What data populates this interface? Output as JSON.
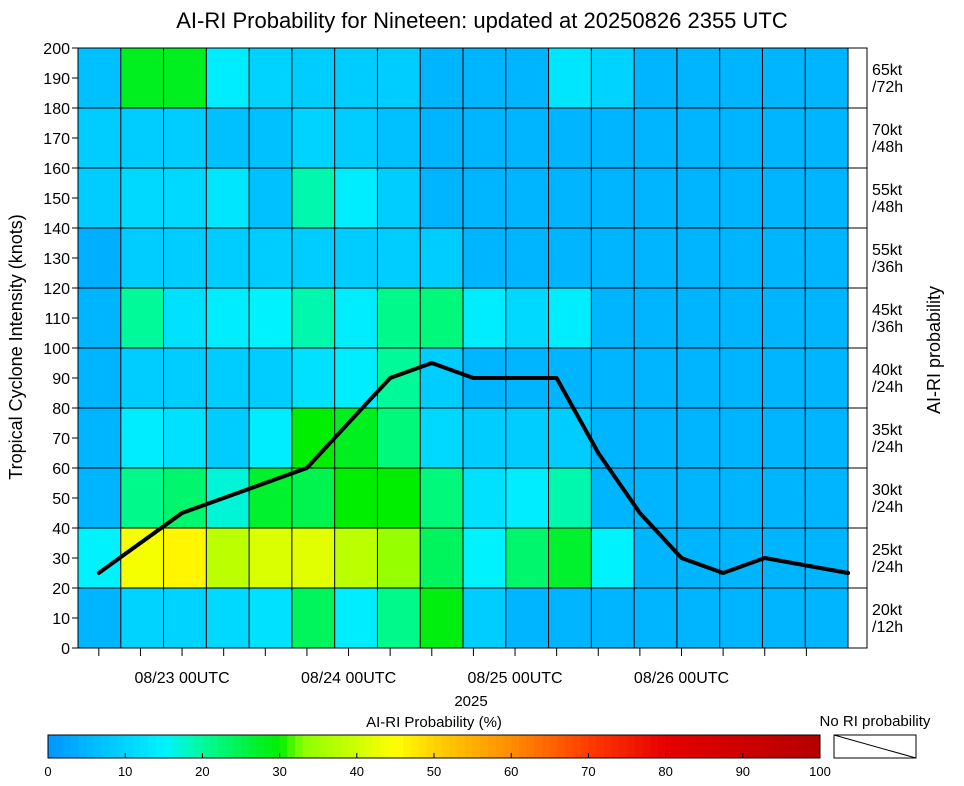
{
  "chart_data": {
    "type": "heatmap",
    "title": "AI-RI Probability for Nineteen: updated at 20250826 2355 UTC",
    "ylabel": "Tropical Cyclone Intensity (knots)",
    "xlabel": "2025",
    "right_axis_label": "AI-RI probability",
    "ylim": [
      0,
      200
    ],
    "yticks": [
      0,
      10,
      20,
      30,
      40,
      50,
      60,
      70,
      80,
      90,
      100,
      110,
      120,
      130,
      140,
      150,
      160,
      170,
      180,
      190,
      200
    ],
    "x_tick_labels": [
      "08/23 00UTC",
      "08/24 00UTC",
      "08/25 00UTC",
      "08/26 00UTC"
    ],
    "x_tick_label_times": [
      3,
      7,
      11,
      15
    ],
    "x_minor_ticks": [
      1,
      2,
      3,
      4,
      5,
      6,
      7,
      8,
      9,
      10,
      11,
      12,
      13,
      14,
      15,
      16,
      17,
      18
    ],
    "x_range": [
      0.5,
      19
    ],
    "time_unit": "6-hour steps from 08/22 06UTC",
    "y_bands": [
      {
        "label": "20kt\n/12h",
        "line1": "20kt",
        "line2": "/12h",
        "range": [
          0,
          20
        ]
      },
      {
        "label": "25kt\n/24h",
        "line1": "25kt",
        "line2": "/24h",
        "range": [
          20,
          40
        ]
      },
      {
        "label": "30kt\n/24h",
        "line1": "30kt",
        "line2": "/24h",
        "range": [
          40,
          60
        ]
      },
      {
        "label": "35kt\n/24h",
        "line1": "35kt",
        "line2": "/24h",
        "range": [
          60,
          80
        ]
      },
      {
        "label": "40kt\n/24h",
        "line1": "40kt",
        "line2": "/24h",
        "range": [
          80,
          100
        ]
      },
      {
        "label": "45kt\n/36h",
        "line1": "45kt",
        "line2": "/36h",
        "range": [
          100,
          120
        ]
      },
      {
        "label": "55kt\n/36h",
        "line1": "55kt",
        "line2": "/36h",
        "range": [
          120,
          140
        ]
      },
      {
        "label": "55kt\n/48h",
        "line1": "55kt",
        "line2": "/48h",
        "range": [
          140,
          160
        ]
      },
      {
        "label": "70kt\n/48h",
        "line1": "70kt",
        "line2": "/48h",
        "range": [
          160,
          180
        ]
      },
      {
        "label": "65kt\n/72h",
        "line1": "65kt",
        "line2": "/72h",
        "range": [
          180,
          200
        ]
      }
    ],
    "grid_columns": 18,
    "probabilities_by_band": [
      [
        5,
        10,
        10,
        11,
        12,
        24,
        14,
        21,
        29,
        9,
        5,
        5,
        5,
        5,
        5,
        5,
        5,
        5
      ],
      [
        15,
        44,
        46,
        38,
        41,
        42,
        38,
        34,
        24,
        15,
        23,
        27,
        15,
        5,
        5,
        5,
        5,
        5
      ],
      [
        5,
        21,
        23,
        17,
        27,
        25,
        30,
        30,
        22,
        12,
        14,
        19,
        5,
        5,
        5,
        5,
        5,
        5
      ],
      [
        5,
        14,
        12,
        9,
        14,
        30,
        28,
        22,
        11,
        9,
        9,
        9,
        5,
        5,
        5,
        5,
        5,
        5
      ],
      [
        5,
        9,
        9,
        9,
        9,
        12,
        14,
        20,
        9,
        5,
        5,
        5,
        5,
        5,
        5,
        5,
        5,
        5
      ],
      [
        5,
        20,
        12,
        14,
        15,
        19,
        14,
        21,
        22,
        14,
        11,
        14,
        5,
        5,
        5,
        5,
        5,
        5
      ],
      [
        4,
        9,
        9,
        9,
        9,
        9,
        9,
        9,
        9,
        5,
        5,
        5,
        5,
        5,
        5,
        5,
        5,
        5
      ],
      [
        9,
        11,
        11,
        13,
        7,
        19,
        14,
        9,
        5,
        5,
        5,
        5,
        5,
        5,
        5,
        5,
        5,
        5
      ],
      [
        9,
        9,
        9,
        7,
        7,
        10,
        9,
        7,
        5,
        5,
        5,
        5,
        5,
        5,
        5,
        5,
        5,
        5
      ],
      [
        7,
        28,
        28,
        14,
        10,
        9,
        9,
        9,
        5,
        5,
        5,
        13,
        10,
        5,
        5,
        5,
        5,
        5
      ]
    ],
    "series": [
      {
        "name": "Intensity (knots)",
        "x": [
          1,
          2,
          3,
          4,
          5,
          6,
          7,
          8,
          9,
          10,
          11,
          12,
          13,
          14,
          15,
          16,
          17,
          18,
          19
        ],
        "values": [
          25,
          35,
          45,
          50,
          55,
          60,
          75,
          90,
          95,
          90,
          90,
          90,
          65,
          45,
          30,
          25,
          30,
          27.5,
          25
        ]
      }
    ],
    "colorbar": {
      "title": "AI-RI Probability (%)",
      "ticks": [
        0,
        10,
        20,
        30,
        40,
        50,
        60,
        70,
        80,
        90,
        100
      ],
      "range": [
        0,
        100
      ],
      "stops": [
        {
          "value": 0,
          "color": "#0096ff"
        },
        {
          "value": 15,
          "color": "#00f2ff"
        },
        {
          "value": 20,
          "color": "#00fa9a"
        },
        {
          "value": 30,
          "color": "#00ee00"
        },
        {
          "value": 33,
          "color": "#8cff00"
        },
        {
          "value": 45,
          "color": "#ffff00"
        },
        {
          "value": 50,
          "color": "#ffd200"
        },
        {
          "value": 60,
          "color": "#ff8c00"
        },
        {
          "value": 70,
          "color": "#ff3c00"
        },
        {
          "value": 80,
          "color": "#e60000"
        },
        {
          "value": 100,
          "color": "#b40000"
        }
      ],
      "no_ri_label": "No RI probability"
    }
  }
}
